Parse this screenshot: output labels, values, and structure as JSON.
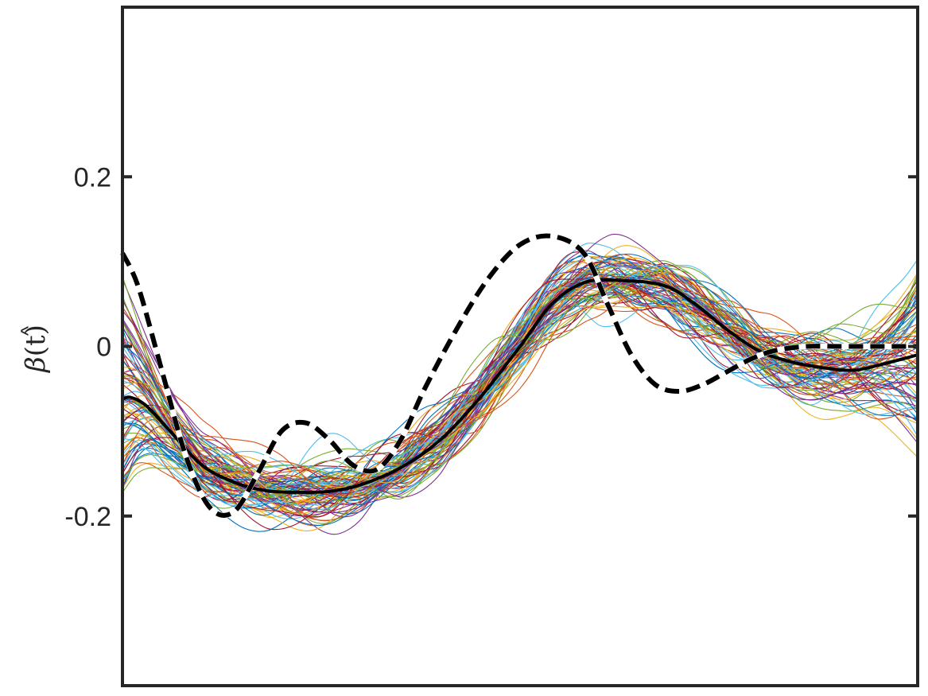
{
  "chart_data": {
    "type": "line",
    "title": "",
    "xlabel": "",
    "ylabel_base": "β",
    "ylabel_arg": "(t)",
    "xlim": [
      0,
      1
    ],
    "ylim": [
      -0.4,
      0.4
    ],
    "yticks": [
      -0.2,
      0,
      0.2
    ],
    "ytick_labels": [
      "-0.2",
      "0",
      "0.2"
    ],
    "grid": false,
    "legend": "none",
    "series": [
      {
        "style": "solid-black",
        "x": [
          0,
          0.01,
          0.03,
          0.06,
          0.1,
          0.14,
          0.18,
          0.22,
          0.26,
          0.3,
          0.35,
          0.4,
          0.45,
          0.5,
          0.54,
          0.58,
          0.62,
          0.68,
          0.72,
          0.76,
          0.8,
          0.84,
          0.88,
          0.92,
          0.96,
          1.0
        ],
        "values": [
          -0.062,
          -0.06,
          -0.07,
          -0.1,
          -0.14,
          -0.16,
          -0.17,
          -0.172,
          -0.171,
          -0.163,
          -0.143,
          -0.11,
          -0.06,
          0.0,
          0.05,
          0.075,
          0.078,
          0.072,
          0.05,
          0.02,
          -0.005,
          -0.018,
          -0.025,
          -0.028,
          -0.02,
          -0.01
        ]
      },
      {
        "style": "dashed-black",
        "x": [
          0,
          0.02,
          0.05,
          0.08,
          0.11,
          0.14,
          0.17,
          0.2,
          0.23,
          0.26,
          0.29,
          0.32,
          0.35,
          0.38,
          0.42,
          0.46,
          0.5,
          0.54,
          0.58,
          0.61,
          0.64,
          0.67,
          0.7,
          0.73,
          0.76,
          0.79,
          0.82,
          0.86,
          0.9,
          0.94,
          0.97,
          1.0
        ],
        "values": [
          0.11,
          0.07,
          -0.03,
          -0.13,
          -0.19,
          -0.195,
          -0.15,
          -0.1,
          -0.09,
          -0.11,
          -0.14,
          -0.145,
          -0.11,
          -0.05,
          0.02,
          0.08,
          0.12,
          0.13,
          0.11,
          0.05,
          -0.01,
          -0.045,
          -0.053,
          -0.045,
          -0.03,
          -0.015,
          -0.005,
          0.0,
          0.0,
          0.0,
          0.0,
          0.0
        ]
      }
    ]
  }
}
